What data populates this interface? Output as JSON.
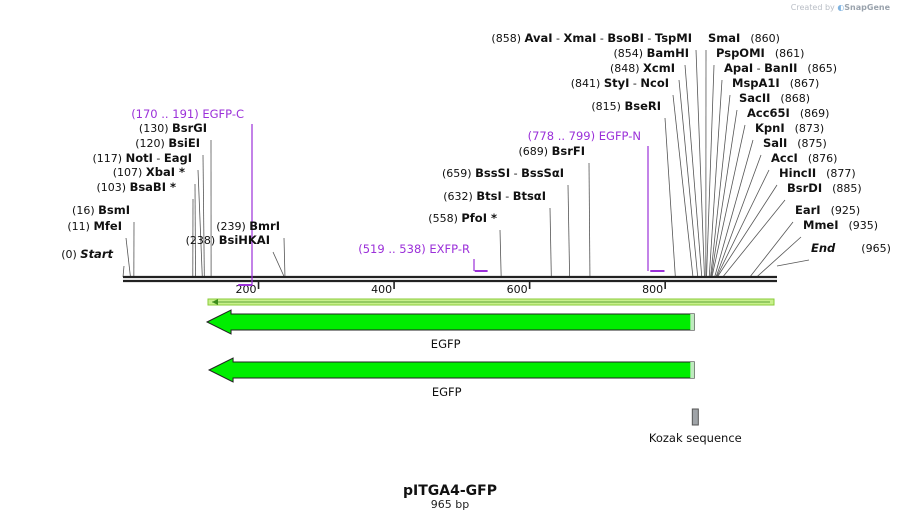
{
  "watermark": {
    "prefix": "Created by",
    "brand": "SnapGene"
  },
  "plasmid": {
    "name": "pITGA4-GFP",
    "length_label": "965 bp",
    "length_bp": 965
  },
  "ruler": {
    "ticks": [
      200,
      400,
      600,
      800
    ]
  },
  "left_sites": [
    {
      "pos": 0,
      "pos_label": "(0)",
      "names": [
        "Start"
      ],
      "italic": true
    },
    {
      "pos": 11,
      "pos_label": "(11)",
      "names": [
        "MfeI"
      ]
    },
    {
      "pos": 16,
      "pos_label": "(16)",
      "names": [
        "BsmI"
      ]
    },
    {
      "pos": 103,
      "pos_label": "(103)",
      "names": [
        "BsaBI *"
      ]
    },
    {
      "pos": 107,
      "pos_label": "(107)",
      "names": [
        "XbaI *"
      ]
    },
    {
      "pos": 117,
      "pos_label": "(117)",
      "names": [
        "NotI",
        "EagI"
      ]
    },
    {
      "pos": 120,
      "pos_label": "(120)",
      "names": [
        "BsiEI"
      ]
    },
    {
      "pos": 130,
      "pos_label": "(130)",
      "names": [
        "BsrGI"
      ]
    },
    {
      "pos": 238,
      "pos_label": "(238)",
      "names": [
        "BsiHKAI"
      ]
    },
    {
      "pos": 239,
      "pos_label": "(239)",
      "names": [
        "BmrI"
      ]
    },
    {
      "pos": 558,
      "pos_label": "(558)",
      "names": [
        "PfoI *"
      ]
    },
    {
      "pos": 632,
      "pos_label": "(632)",
      "names": [
        "BtsI",
        "BtsαI"
      ]
    },
    {
      "pos": 659,
      "pos_label": "(659)",
      "names": [
        "BssSI",
        "BssSαI"
      ]
    },
    {
      "pos": 689,
      "pos_label": "(689)",
      "names": [
        "BsrFI"
      ]
    },
    {
      "pos": 815,
      "pos_label": "(815)",
      "names": [
        "BseRI"
      ]
    },
    {
      "pos": 841,
      "pos_label": "(841)",
      "names": [
        "StyI",
        "NcoI"
      ]
    },
    {
      "pos": 848,
      "pos_label": "(848)",
      "names": [
        "XcmI"
      ]
    },
    {
      "pos": 854,
      "pos_label": "(854)",
      "names": [
        "BamHI"
      ]
    },
    {
      "pos": 858,
      "pos_label": "(858)",
      "names": [
        "AvaI",
        "XmaI",
        "BsoBI",
        "TspMI"
      ]
    }
  ],
  "right_sites": [
    {
      "pos": 860,
      "pos_label": "(860)",
      "names": [
        "SmaI"
      ]
    },
    {
      "pos": 861,
      "pos_label": "(861)",
      "names": [
        "PspOMI"
      ]
    },
    {
      "pos": 865,
      "pos_label": "(865)",
      "names": [
        "ApaI",
        "BanII"
      ]
    },
    {
      "pos": 867,
      "pos_label": "(867)",
      "names": [
        "MspA1I"
      ]
    },
    {
      "pos": 868,
      "pos_label": "(868)",
      "names": [
        "SacII"
      ]
    },
    {
      "pos": 869,
      "pos_label": "(869)",
      "names": [
        "Acc65I"
      ]
    },
    {
      "pos": 873,
      "pos_label": "(873)",
      "names": [
        "KpnI"
      ]
    },
    {
      "pos": 875,
      "pos_label": "(875)",
      "names": [
        "SalI"
      ]
    },
    {
      "pos": 876,
      "pos_label": "(876)",
      "names": [
        "AccI"
      ]
    },
    {
      "pos": 877,
      "pos_label": "(877)",
      "names": [
        "HincII"
      ]
    },
    {
      "pos": 885,
      "pos_label": "(885)",
      "names": [
        "BsrDI"
      ]
    },
    {
      "pos": 925,
      "pos_label": "(925)",
      "names": [
        "EarI"
      ]
    },
    {
      "pos": 935,
      "pos_label": "(935)",
      "names": [
        "MmeI"
      ]
    },
    {
      "pos": 965,
      "pos_label": "(965)",
      "names": [
        "End"
      ],
      "italic": true
    }
  ],
  "primers": [
    {
      "range_label": "(170 .. 191)",
      "name": "EGFP-C",
      "start": 170,
      "end": 191,
      "direction": "reverse"
    },
    {
      "range_label": "(519 .. 538)",
      "name": "EXFP-R",
      "start": 519,
      "end": 538,
      "direction": "reverse"
    },
    {
      "range_label": "(778 .. 799)",
      "name": "EGFP-N",
      "start": 778,
      "end": 799,
      "direction": "forward"
    }
  ],
  "features": [
    {
      "name": "EGFP",
      "start": 124,
      "end": 843,
      "direction": "reverse",
      "color": "#00ee00"
    },
    {
      "name": "EGFP",
      "start": 127,
      "end": 843,
      "direction": "reverse",
      "color": "#00ee00"
    },
    {
      "name": "Kozak sequence",
      "start": 843,
      "end": 852,
      "direction": "none",
      "color": "#a0a4a8"
    }
  ],
  "colors": {
    "primer": "#9b30d9",
    "feature": "#00ee00",
    "backbone": "#222222"
  }
}
